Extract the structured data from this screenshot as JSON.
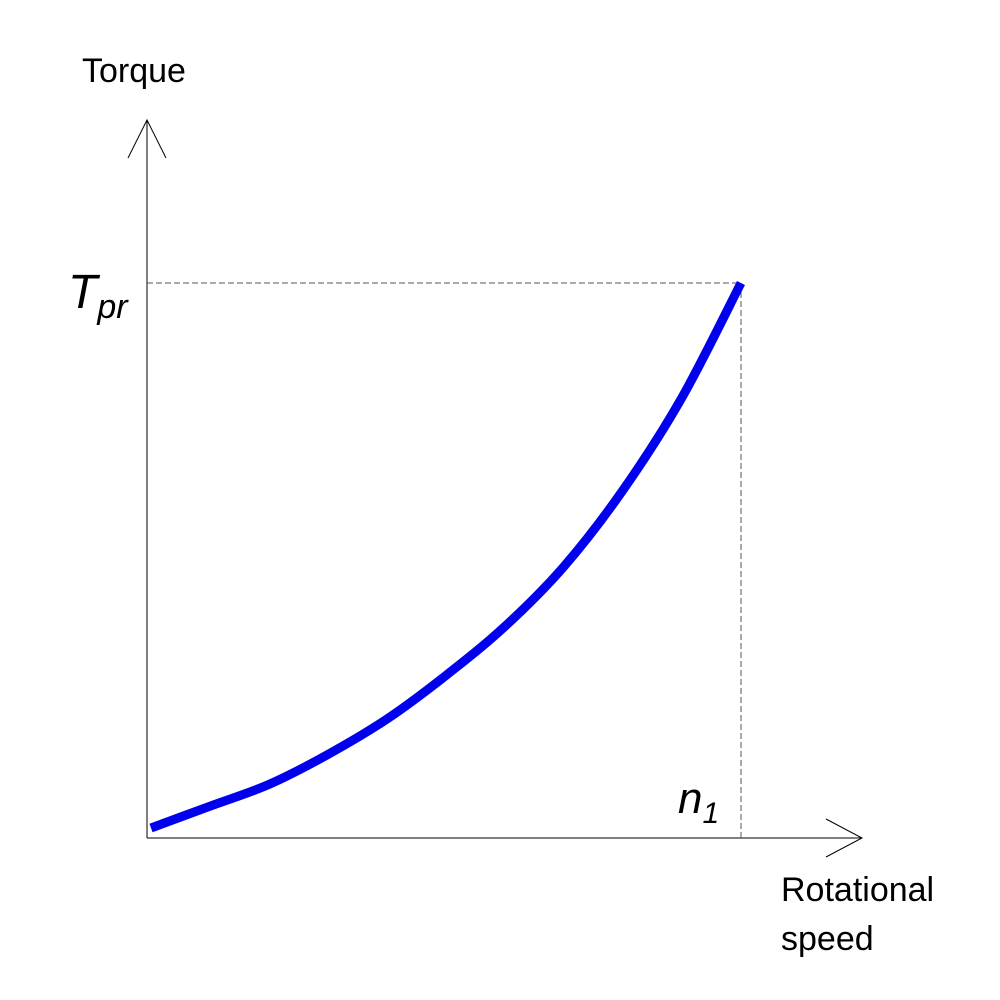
{
  "chart_data": {
    "type": "line",
    "xlabel_line1": "Rotational",
    "xlabel_line2": "speed",
    "ylabel": "Torque",
    "y_marker": {
      "main": "T",
      "sub": "pr"
    },
    "x_marker": {
      "main": "n",
      "sub": "1"
    },
    "x_range": [
      0,
      1
    ],
    "y_range": [
      0,
      1
    ],
    "series": [
      {
        "color": "#0000ee",
        "x": [
          0.0,
          0.1,
          0.2,
          0.3,
          0.4,
          0.5,
          0.6,
          0.7,
          0.8,
          0.9,
          1.0
        ],
        "y": [
          0.0,
          0.04,
          0.08,
          0.135,
          0.2,
          0.28,
          0.37,
          0.48,
          0.62,
          0.79,
          1.0
        ]
      }
    ],
    "grid": false,
    "legend": "none"
  }
}
